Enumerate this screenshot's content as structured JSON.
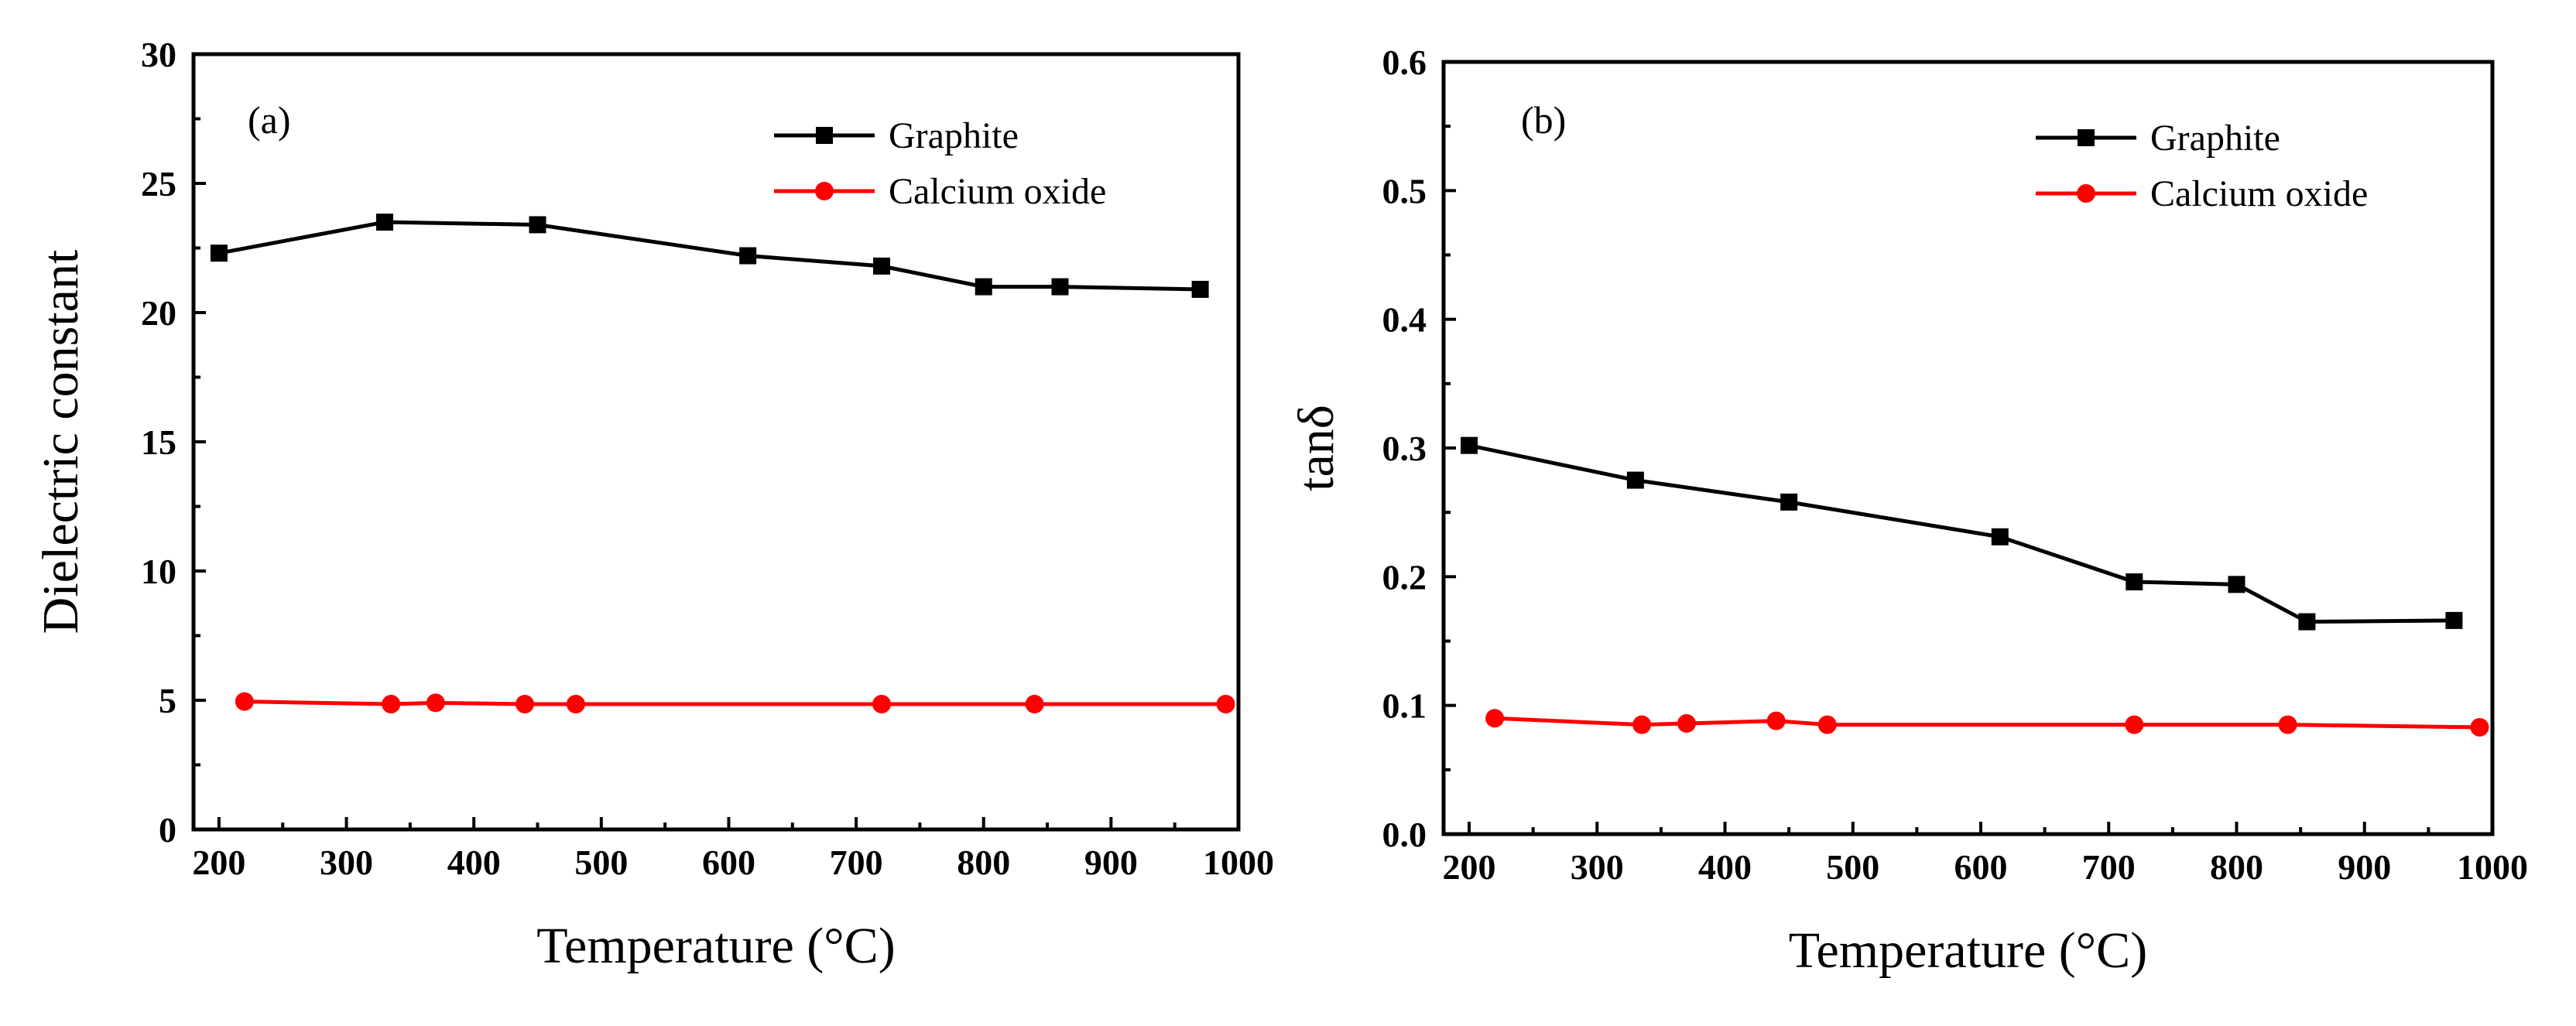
{
  "chart_data": [
    {
      "type": "line",
      "panel_label": "(a)",
      "xlabel": "Temperature (°C)",
      "ylabel": "Dielectric constant",
      "xlim": [
        180,
        1000
      ],
      "ylim": [
        0,
        30
      ],
      "x_ticks": [
        200,
        300,
        400,
        500,
        600,
        700,
        800,
        900,
        1000
      ],
      "y_ticks": [
        0,
        5,
        10,
        15,
        20,
        25,
        30
      ],
      "y_tick_labels": [
        "0",
        "5",
        "10",
        "15",
        "20",
        "25",
        "30"
      ],
      "legend_position": "top-right",
      "series": [
        {
          "name": "Graphite",
          "color": "#000000",
          "marker": "square",
          "x": [
            200,
            330,
            450,
            615,
            720,
            800,
            860,
            970
          ],
          "y": [
            22.3,
            23.5,
            23.4,
            22.2,
            21.8,
            21.0,
            21.0,
            20.9
          ]
        },
        {
          "name": "Calcium oxide",
          "color": "#ff0000",
          "marker": "circle",
          "x": [
            220,
            335,
            370,
            440,
            480,
            720,
            840,
            990
          ],
          "y": [
            4.95,
            4.85,
            4.9,
            4.85,
            4.85,
            4.85,
            4.85,
            4.85
          ]
        }
      ]
    },
    {
      "type": "line",
      "panel_label": "(b)",
      "xlabel": "Temperature (°C)",
      "ylabel": "tanδ",
      "xlim": [
        180,
        1000
      ],
      "ylim": [
        0,
        0.6
      ],
      "x_ticks": [
        200,
        300,
        400,
        500,
        600,
        700,
        800,
        900,
        1000
      ],
      "y_ticks": [
        0,
        0.1,
        0.2,
        0.3,
        0.4,
        0.5,
        0.6
      ],
      "y_tick_labels": [
        "0.0",
        "0.1",
        "0.2",
        "0.3",
        "0.4",
        "0.5",
        "0.6"
      ],
      "legend_position": "top-right",
      "series": [
        {
          "name": "Graphite",
          "color": "#000000",
          "marker": "square",
          "x": [
            200,
            330,
            450,
            615,
            720,
            800,
            855,
            970
          ],
          "y": [
            0.302,
            0.275,
            0.258,
            0.231,
            0.196,
            0.194,
            0.165,
            0.166
          ]
        },
        {
          "name": "Calcium oxide",
          "color": "#ff0000",
          "marker": "circle",
          "x": [
            220,
            335,
            370,
            440,
            480,
            720,
            840,
            990
          ],
          "y": [
            0.09,
            0.085,
            0.086,
            0.088,
            0.085,
            0.085,
            0.085,
            0.083
          ]
        }
      ]
    }
  ]
}
